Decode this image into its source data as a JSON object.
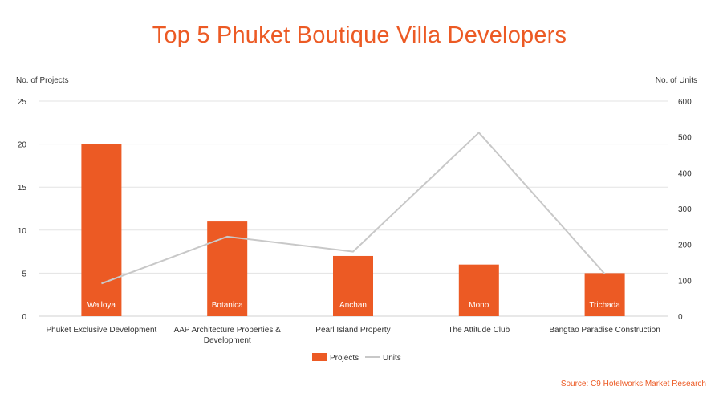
{
  "title": "Top 5 Phuket Boutique Villa Developers",
  "source": "Source: C9 Hotelworks Market Research",
  "colors": {
    "bar": "#ec5a24",
    "line": "#c8c8c8",
    "title": "#ec5a24",
    "grid": "#e3e3e3",
    "text": "#333333"
  },
  "chart_data": {
    "type": "bar",
    "title": "Top 5 Phuket Boutique Villa Developers",
    "categories": [
      [
        "Phuket Exclusive Development"
      ],
      [
        "AAP Architecture Properties &",
        "Development"
      ],
      [
        "Pearl Island Property"
      ],
      [
        "The Attitude Club"
      ],
      [
        "Bangtao Paradise Construction"
      ]
    ],
    "bar_labels": [
      "Walloya",
      "Botanica",
      "Anchan",
      "Mono",
      "Trichada"
    ],
    "series": [
      {
        "name": "Projects",
        "type": "bar",
        "axis": "left",
        "values": [
          20,
          11,
          7,
          6,
          5
        ]
      },
      {
        "name": "Units",
        "type": "line",
        "axis": "right",
        "values": [
          91,
          222,
          180,
          512,
          118
        ]
      }
    ],
    "y_left": {
      "label": "No. of Projects",
      "ylim": [
        0,
        25
      ],
      "ticks": [
        "0",
        "5",
        "10",
        "15",
        "20",
        "25"
      ]
    },
    "y_right": {
      "label": "No. of Units",
      "ylim": [
        0,
        600
      ],
      "ticks": [
        "0",
        "100",
        "200",
        "300",
        "400",
        "500",
        "600"
      ]
    },
    "grid": true,
    "legend": {
      "placement": "bottom",
      "items": [
        "Projects",
        "Units"
      ]
    }
  }
}
